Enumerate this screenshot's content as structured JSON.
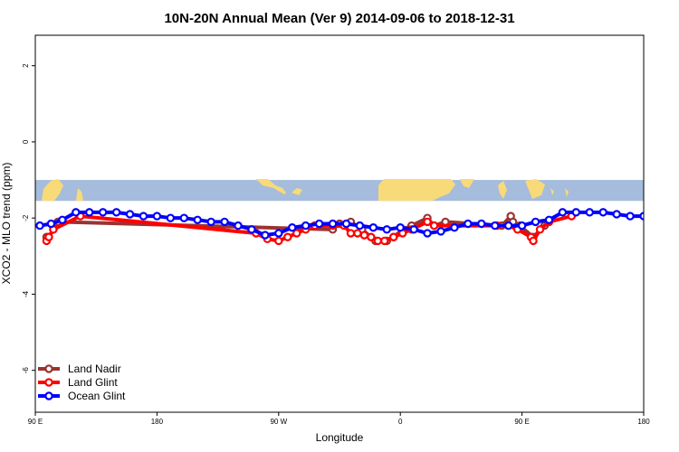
{
  "chart_data": {
    "type": "line",
    "title": "10N-20N Annual Mean (Ver 9)   2014-09-06 to 2018-12-31",
    "xlabel": "Longitude",
    "ylabel": "XCO2 - MLO trend (ppm)",
    "xlim": [
      -90,
      180
    ],
    "ylim": [
      -7.1,
      2.8
    ],
    "x_ticks": [
      {
        "value": -90,
        "label": "90 E"
      },
      {
        "value": -36,
        "label": "180"
      },
      {
        "value": 18,
        "label": "90 W"
      },
      {
        "value": 72,
        "label": "0"
      },
      {
        "value": 126,
        "label": "90 E"
      },
      {
        "value": 180,
        "label": "180"
      }
    ],
    "y_ticks": [
      {
        "value": 2,
        "label": "2"
      },
      {
        "value": 0,
        "label": "0"
      },
      {
        "value": -2,
        "label": "-2"
      },
      {
        "value": -4,
        "label": "-4"
      },
      {
        "value": -6,
        "label": "-6"
      }
    ],
    "grid": false,
    "legend_position": "bottom-left",
    "map_strip": {
      "y_range": [
        -1.55,
        -1.0
      ],
      "ocean_color": "#a6bcdc",
      "land_color": "#f9da78"
    },
    "series": [
      {
        "name": "Land Nadir",
        "color": "#993333",
        "x": [
          -85,
          -84,
          -82,
          -80,
          42,
          45,
          50,
          55,
          61,
          66,
          69,
          73,
          77,
          84,
          87,
          92,
          117,
          121,
          122,
          125,
          131,
          136,
          138
        ],
        "y": [
          -2.5,
          -2.5,
          -2.3,
          -2.1,
          -2.3,
          -2.15,
          -2.1,
          -2.3,
          -2.6,
          -2.6,
          -2.5,
          -2.3,
          -2.2,
          -2.0,
          -2.2,
          -2.1,
          -2.2,
          -1.95,
          -2.1,
          -2.2,
          -2.5,
          -2.2,
          -2.1
        ]
      },
      {
        "name": "Land Glint",
        "color": "#ff0000",
        "x": [
          -85,
          -84,
          -82,
          -70,
          8,
          13,
          18,
          22,
          26,
          30,
          34,
          42,
          47,
          50,
          53,
          56,
          59,
          62,
          65,
          69,
          73,
          77,
          84,
          87,
          115,
          120,
          124,
          130,
          131,
          134,
          138,
          148
        ],
        "y": [
          -2.6,
          -2.5,
          -2.3,
          -1.95,
          -2.4,
          -2.55,
          -2.6,
          -2.5,
          -2.4,
          -2.3,
          -2.2,
          -2.2,
          -2.2,
          -2.4,
          -2.4,
          -2.45,
          -2.5,
          -2.6,
          -2.6,
          -2.5,
          -2.4,
          -2.3,
          -2.1,
          -2.2,
          -2.2,
          -2.2,
          -2.3,
          -2.5,
          -2.6,
          -2.3,
          -2.1,
          -1.95
        ]
      },
      {
        "name": "Ocean Glint",
        "color": "#0000ff",
        "x": [
          -88,
          -83,
          -78,
          -72,
          -66,
          -60,
          -54,
          -48,
          -42,
          -36,
          -30,
          -24,
          -18,
          -12,
          -6,
          0,
          6,
          12,
          18,
          24,
          30,
          36,
          42,
          48,
          54,
          60,
          66,
          72,
          78,
          84,
          90,
          96,
          102,
          108,
          114,
          120,
          126,
          132,
          138,
          144,
          150,
          156,
          162,
          168,
          174,
          180
        ],
        "y": [
          -2.2,
          -2.15,
          -2.05,
          -1.85,
          -1.85,
          -1.85,
          -1.85,
          -1.9,
          -1.95,
          -1.95,
          -2.0,
          -2.0,
          -2.05,
          -2.1,
          -2.1,
          -2.2,
          -2.3,
          -2.45,
          -2.4,
          -2.25,
          -2.2,
          -2.15,
          -2.15,
          -2.15,
          -2.2,
          -2.25,
          -2.3,
          -2.25,
          -2.3,
          -2.4,
          -2.35,
          -2.25,
          -2.15,
          -2.15,
          -2.2,
          -2.2,
          -2.2,
          -2.1,
          -2.05,
          -1.85,
          -1.85,
          -1.85,
          -1.85,
          -1.9,
          -1.95,
          -1.95
        ]
      }
    ]
  }
}
